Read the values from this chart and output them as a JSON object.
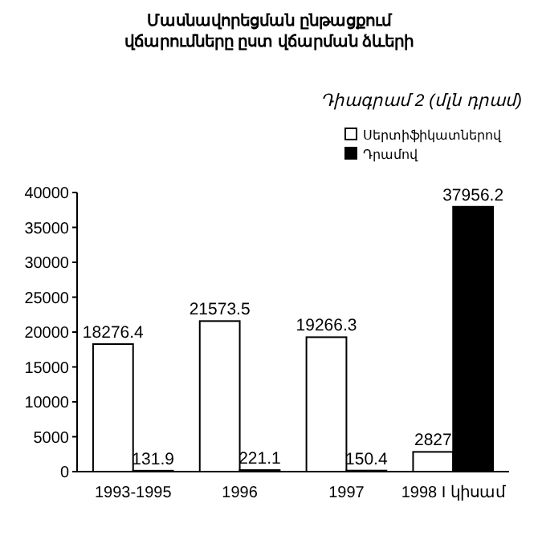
{
  "chart_data": {
    "type": "bar",
    "title": "Մասնավորեցման ընթացքում վճարումները ըստ վճարման ձևերի",
    "subtitle": "Դիագրամ 2 (մլն դրամ)",
    "categories": [
      "1993-1995",
      "1996",
      "1997",
      "1998 I կիսամ"
    ],
    "series": [
      {
        "name": "Սերտիֆիկատներով",
        "color": "#ffffff",
        "values": [
          18276.4,
          21573.5,
          19266.3,
          2827
        ]
      },
      {
        "name": "Դրամով",
        "color": "#000000",
        "values": [
          131.9,
          221.1,
          150.4,
          37956.2
        ]
      }
    ],
    "ylim": [
      0,
      40000
    ],
    "yticks": [
      0,
      5000,
      10000,
      15000,
      20000,
      25000,
      30000,
      35000,
      40000
    ],
    "data_labels": true,
    "legend": "top right",
    "grid": false
  }
}
